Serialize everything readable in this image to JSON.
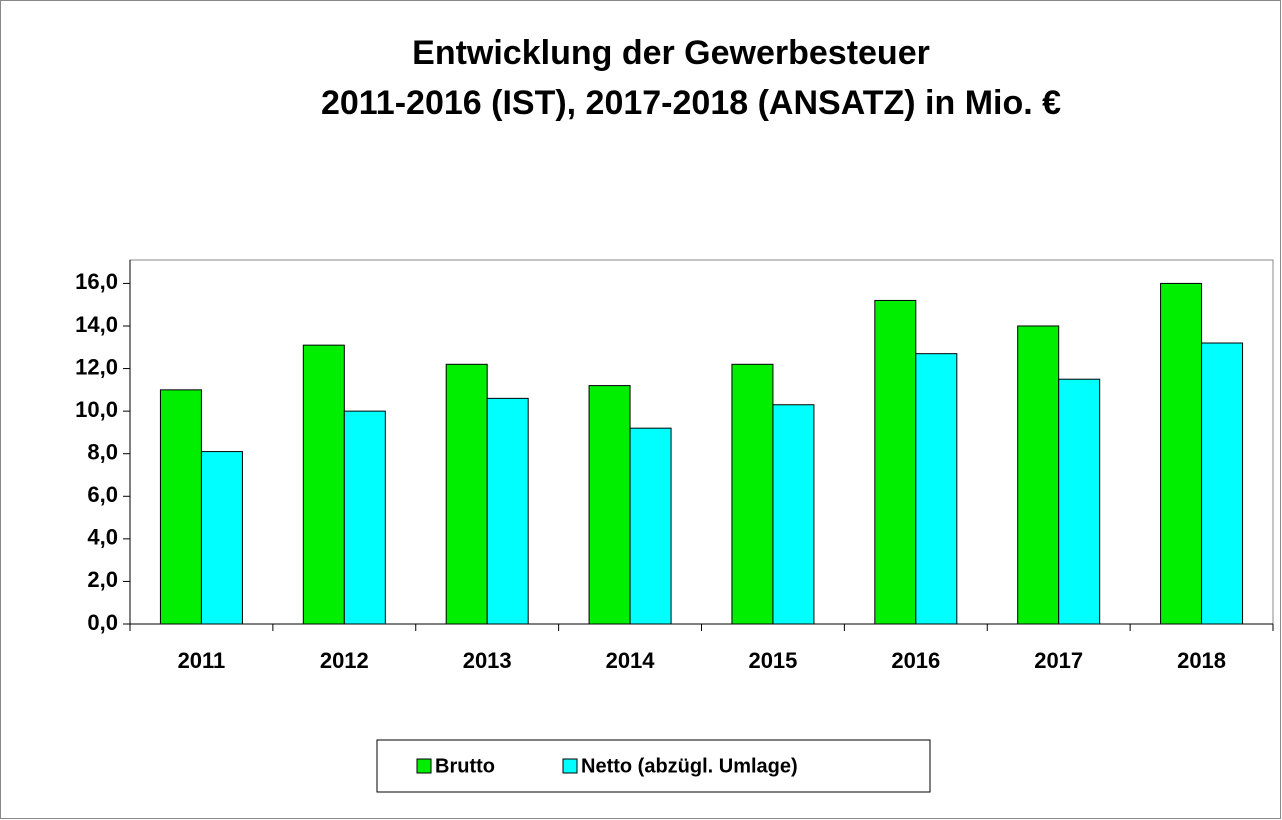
{
  "chart_data": {
    "type": "bar",
    "title": [
      "Entwicklung der Gewerbesteuer",
      "2011-2016 (IST), 2017-2018 (ANSATZ) in Mio. €"
    ],
    "categories": [
      "2011",
      "2012",
      "2013",
      "2014",
      "2015",
      "2016",
      "2017",
      "2018"
    ],
    "series": [
      {
        "name": "Brutto",
        "color": "#00ee00",
        "values": [
          11.0,
          13.1,
          12.2,
          11.2,
          12.2,
          15.2,
          14.0,
          16.0
        ]
      },
      {
        "name": "Netto (abzügl. Umlage)",
        "color": "#00ffff",
        "values": [
          8.1,
          10.0,
          10.6,
          9.2,
          10.3,
          12.7,
          11.5,
          13.2
        ]
      }
    ],
    "ylim": [
      0,
      17.1
    ],
    "yticks": [
      {
        "value": 0,
        "label": "0,0"
      },
      {
        "value": 2,
        "label": "2,0"
      },
      {
        "value": 4,
        "label": "4,0"
      },
      {
        "value": 6,
        "label": "6,0"
      },
      {
        "value": 8,
        "label": "8,0"
      },
      {
        "value": 10,
        "label": "10,0"
      },
      {
        "value": 12,
        "label": "12,0"
      },
      {
        "value": 14,
        "label": "14,0"
      },
      {
        "value": 16,
        "label": "16,0"
      }
    ],
    "legend": "bottom"
  }
}
